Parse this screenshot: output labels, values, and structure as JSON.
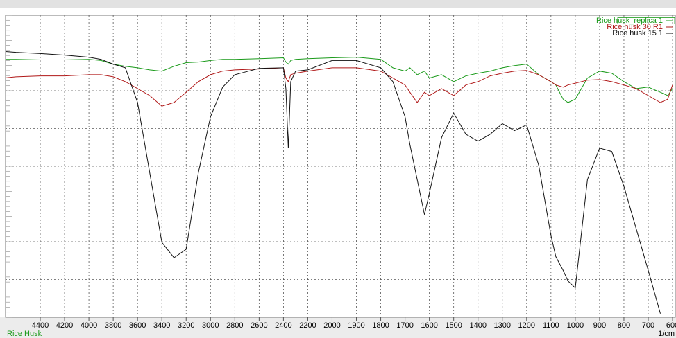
{
  "chart_data": {
    "type": "line",
    "x_label": "1/cm",
    "sample_label": "Rice Husk",
    "x": [
      4700,
      4600,
      4400,
      4200,
      4000,
      3900,
      3800,
      3700,
      3600,
      3500,
      3400,
      3300,
      3200,
      3100,
      3000,
      2900,
      2800,
      2600,
      2400,
      2380,
      2360,
      2340,
      2300,
      2200,
      2000,
      1900,
      1800,
      1750,
      1700,
      1680,
      1650,
      1620,
      1600,
      1550,
      1500,
      1450,
      1400,
      1350,
      1300,
      1250,
      1200,
      1150,
      1100,
      1080,
      1050,
      1030,
      1000,
      950,
      900,
      850,
      800,
      750,
      700,
      650,
      620,
      600
    ],
    "series": [
      {
        "name": "Rice husk_replica 1",
        "color": "#1a9a1a",
        "values": [
          85.4,
          85.4,
          85.2,
          85.2,
          85.4,
          85.0,
          83.8,
          83.1,
          82.6,
          81.9,
          81.5,
          83.1,
          84.3,
          84.5,
          85.0,
          85.4,
          85.4,
          85.6,
          85.9,
          84.5,
          83.8,
          85.0,
          85.4,
          85.6,
          85.9,
          86.1,
          85.4,
          82.6,
          81.5,
          82.6,
          80.3,
          81.5,
          79.2,
          80.3,
          78.0,
          79.9,
          80.8,
          81.5,
          82.6,
          83.3,
          83.8,
          80.3,
          78.0,
          76.9,
          72.2,
          71.1,
          72.2,
          79.2,
          81.5,
          80.8,
          78.0,
          75.7,
          76.2,
          74.5,
          73.4,
          75.7
        ]
      },
      {
        "name": "Rice husk 30 R1",
        "color": "#b01818",
        "values": [
          79.2,
          79.6,
          79.9,
          79.9,
          80.3,
          80.3,
          79.6,
          78.0,
          75.7,
          73.4,
          69.9,
          71.1,
          74.5,
          78.0,
          80.3,
          81.5,
          81.9,
          82.2,
          82.6,
          79.2,
          78.0,
          80.3,
          80.8,
          81.5,
          82.6,
          82.6,
          81.5,
          79.2,
          76.9,
          74.5,
          71.1,
          74.5,
          73.4,
          75.7,
          73.4,
          76.9,
          78.0,
          79.9,
          80.8,
          81.5,
          81.7,
          80.3,
          78.0,
          76.9,
          76.2,
          76.9,
          77.5,
          78.5,
          78.7,
          78.0,
          76.9,
          75.7,
          73.4,
          71.1,
          72.2,
          76.9
        ]
      },
      {
        "name": "Rice husk 15   1",
        "color": "#111111",
        "values": [
          88.0,
          87.7,
          87.3,
          86.8,
          86.1,
          85.4,
          83.8,
          82.6,
          71.1,
          47.9,
          24.8,
          19.7,
          22.5,
          47.9,
          66.4,
          76.2,
          80.3,
          82.4,
          82.6,
          75.7,
          56.0,
          78.0,
          81.5,
          81.9,
          85.0,
          85.0,
          82.6,
          78.0,
          66.4,
          57.2,
          45.6,
          34.0,
          41.0,
          59.5,
          67.6,
          60.6,
          58.3,
          60.6,
          64.1,
          61.8,
          63.7,
          50.2,
          27.1,
          20.1,
          15.5,
          12.0,
          9.7,
          45.6,
          56.0,
          54.9,
          43.3,
          29.4,
          15.5,
          1.2,
          null,
          null
        ]
      }
    ],
    "xlim": [
      4700,
      600
    ],
    "ylim": [
      0,
      100
    ],
    "xticks": [
      4400,
      4200,
      4000,
      3800,
      3600,
      3400,
      3200,
      3000,
      2800,
      2600,
      2400,
      2200,
      2000,
      1900,
      1800,
      1700,
      1600,
      1500,
      1400,
      1300,
      1200,
      1100,
      1000,
      900,
      800,
      700,
      600
    ],
    "grid": true,
    "legend": "top-right"
  }
}
